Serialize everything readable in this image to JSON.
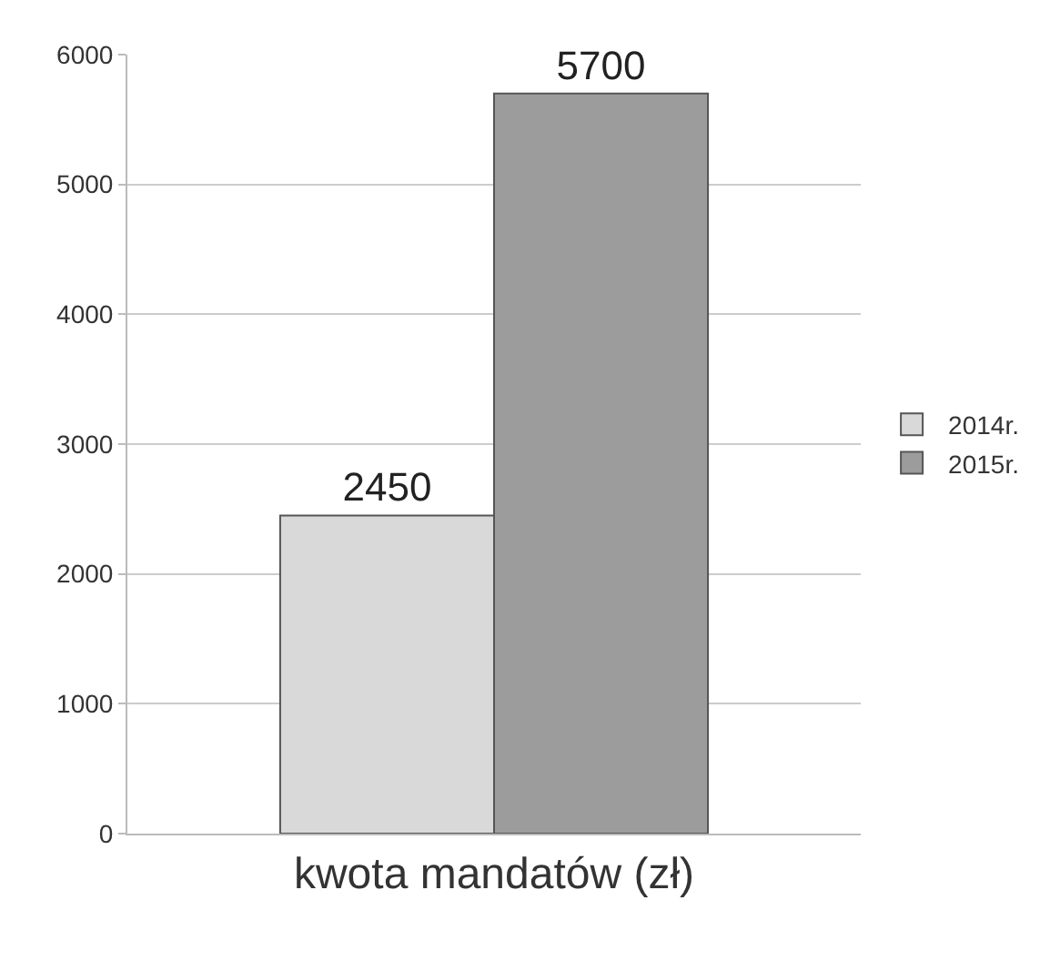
{
  "chart_data": {
    "type": "bar",
    "categories": [
      "kwota mandatów (zł)"
    ],
    "series": [
      {
        "name": "2014r.",
        "color": "#d9d9d9",
        "values": [
          2450
        ]
      },
      {
        "name": "2015r.",
        "color": "#9c9c9c",
        "values": [
          5700
        ]
      }
    ],
    "ylim": [
      0,
      6000
    ],
    "yticks": [
      0,
      1000,
      2000,
      3000,
      4000,
      5000,
      6000
    ],
    "grid": "y",
    "legend": "right",
    "data_labels": true
  }
}
